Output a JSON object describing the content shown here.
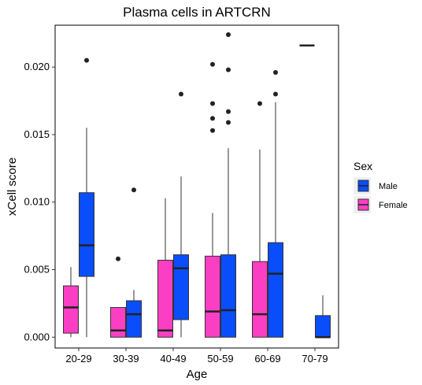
{
  "chart_data": {
    "type": "boxplot",
    "title": "Plasma cells in ARTCRN",
    "xlabel": "Age",
    "ylabel": "xCell score",
    "categories": [
      "20-29",
      "30-39",
      "40-49",
      "50-59",
      "60-69",
      "70-79"
    ],
    "ylim": [
      -0.0008,
      0.0231
    ],
    "yticks": [
      0.0,
      0.005,
      0.01,
      0.015,
      0.02
    ],
    "ytick_labels": [
      "0.000",
      "0.005",
      "0.010",
      "0.015",
      "0.020"
    ],
    "grid": false,
    "legend": {
      "title": "Sex",
      "position": "right",
      "entries": [
        {
          "label": "Male",
          "color": "#0a4dfb"
        },
        {
          "label": "Female",
          "color": "#fb3fc4"
        }
      ]
    },
    "series": [
      {
        "name": "Female",
        "color": "#fb3fc4",
        "boxes": [
          {
            "category": "20-29",
            "lower_whisker": 0.0,
            "q1": 0.0003,
            "median": 0.0022,
            "q3": 0.0038,
            "upper_whisker": 0.0052,
            "outliers": []
          },
          {
            "category": "30-39",
            "lower_whisker": 0.0,
            "q1": 0.0,
            "median": 0.0005,
            "q3": 0.0022,
            "upper_whisker": 0.0022,
            "outliers": [
              0.0058
            ]
          },
          {
            "category": "40-49",
            "lower_whisker": 0.0,
            "q1": 0.0,
            "median": 0.0005,
            "q3": 0.0057,
            "upper_whisker": 0.0103,
            "outliers": []
          },
          {
            "category": "50-59",
            "lower_whisker": 0.0,
            "q1": 0.0,
            "median": 0.0019,
            "q3": 0.006,
            "upper_whisker": 0.0092,
            "outliers": [
              0.0153,
              0.0162,
              0.0173,
              0.0202
            ]
          },
          {
            "category": "60-69",
            "lower_whisker": 0.0,
            "q1": 0.0,
            "median": 0.0017,
            "q3": 0.0056,
            "upper_whisker": 0.0139,
            "outliers": [
              0.0173
            ]
          }
        ]
      },
      {
        "name": "Male",
        "color": "#0a4dfb",
        "boxes": [
          {
            "category": "20-29",
            "lower_whisker": 0.0,
            "q1": 0.0045,
            "median": 0.0068,
            "q3": 0.0107,
            "upper_whisker": 0.0155,
            "outliers": [
              0.0205
            ]
          },
          {
            "category": "30-39",
            "lower_whisker": 0.0,
            "q1": 0.0,
            "median": 0.0017,
            "q3": 0.0027,
            "upper_whisker": 0.0035,
            "outliers": [
              0.0109
            ]
          },
          {
            "category": "40-49",
            "lower_whisker": 0.0,
            "q1": 0.0013,
            "median": 0.0051,
            "q3": 0.0061,
            "upper_whisker": 0.0119,
            "outliers": [
              0.018
            ]
          },
          {
            "category": "50-59",
            "lower_whisker": 0.0,
            "q1": 0.0,
            "median": 0.002,
            "q3": 0.0061,
            "upper_whisker": 0.014,
            "outliers": [
              0.0159,
              0.0167,
              0.0198,
              0.0224
            ]
          },
          {
            "category": "60-69",
            "lower_whisker": 0.0,
            "q1": 0.0,
            "median": 0.0047,
            "q3": 0.007,
            "upper_whisker": 0.0174,
            "outliers": [
              0.018,
              0.0196
            ]
          },
          {
            "category": "70-79",
            "lower_whisker": 0.0,
            "q1": 0.0,
            "median": 0.0,
            "q3": 0.0016,
            "upper_whisker": 0.0031,
            "outliers": []
          }
        ]
      }
    ],
    "extra_marks": [
      {
        "category": "70-79",
        "series": "Female",
        "value": 0.0216,
        "kind": "single-value box"
      }
    ]
  }
}
